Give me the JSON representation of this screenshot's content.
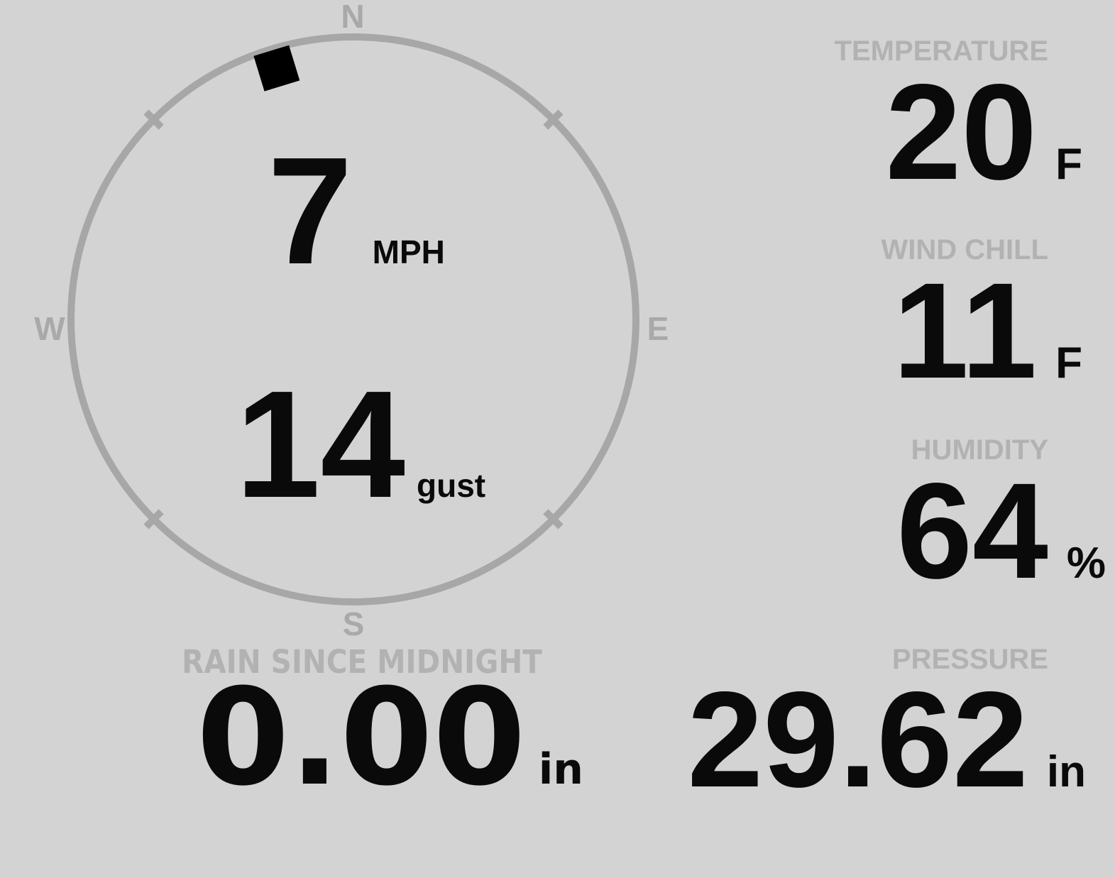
{
  "theme": {
    "background": "#d3d3d3",
    "dial_color": "#a7a7a7",
    "compass_letter_color": "#a9a9a9",
    "label_color": "#b2b2b2",
    "value_color": "#0a0a0a"
  },
  "wind": {
    "compass": {
      "north": "N",
      "east": "E",
      "south": "S",
      "west": "W"
    },
    "direction_deg": 343,
    "speed_value": "7",
    "speed_unit": "MPH",
    "gust_value": "14",
    "gust_unit": "gust"
  },
  "tiles": {
    "temperature": {
      "label": "TEMPERATURE",
      "value": "20",
      "unit": "F"
    },
    "wind_chill": {
      "label": "WIND CHILL",
      "value": "11",
      "unit": "F"
    },
    "humidity": {
      "label": "HUMIDITY",
      "value": "64",
      "unit": "%"
    },
    "rain": {
      "label": "RAIN SINCE MIDNIGHT",
      "value": "0.00",
      "unit": "in"
    },
    "pressure": {
      "label": "PRESSURE",
      "value": "29.62",
      "unit": "in"
    }
  }
}
